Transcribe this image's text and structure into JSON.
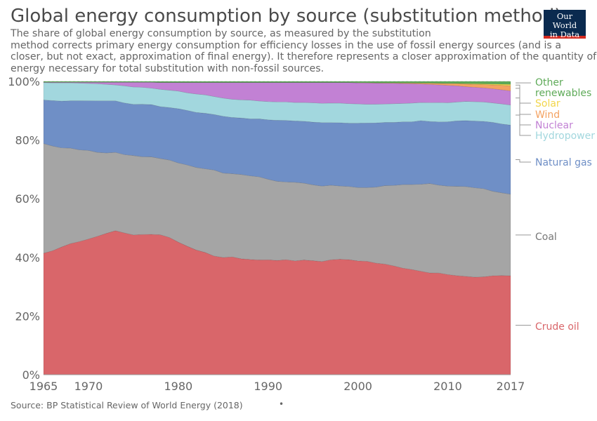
{
  "title": "Global energy consumption by source (substitution method)",
  "subtitle_lines": [
    "The share of global energy consumption by source, as measured by the substitution",
    "method corrects primary energy consumption for efficiency losses in the use of fossil energy sources (and is a",
    "closer, but not exact, approximation of final energy). It therefore represents a closer approximation of the quantity of",
    "energy necessary for total substitution with non-fossil sources."
  ],
  "logo": {
    "line1": "Our World",
    "line2": "in Data"
  },
  "source": "Source: BP Statistical Review of World Energy (2018)",
  "footer_dot": "•",
  "colors": {
    "Crude oil": "#d9666a",
    "Coal": "#a5a5a5",
    "Natural gas": "#6f8fc6",
    "Hydropower": "#a2d7de",
    "Nuclear": "#c281d4",
    "Wind": "#f4a261",
    "Solar": "#f2d64b",
    "Other renewables": "#5eaa58"
  },
  "chart_data": {
    "type": "area",
    "stacked": true,
    "ylim": [
      0,
      100
    ],
    "yticks": [
      "0%",
      "20%",
      "40%",
      "60%",
      "80%",
      "100%"
    ],
    "xticks": [
      "1965",
      "1970",
      "1980",
      "1990",
      "2000",
      "2010",
      "2017"
    ],
    "x": [
      1965,
      1966,
      1967,
      1968,
      1969,
      1970,
      1971,
      1972,
      1973,
      1974,
      1975,
      1976,
      1977,
      1978,
      1979,
      1980,
      1981,
      1982,
      1983,
      1984,
      1985,
      1986,
      1987,
      1988,
      1989,
      1990,
      1991,
      1992,
      1993,
      1994,
      1995,
      1996,
      1997,
      1998,
      1999,
      2000,
      2001,
      2002,
      2003,
      2004,
      2005,
      2006,
      2007,
      2008,
      2009,
      2010,
      2011,
      2012,
      2013,
      2014,
      2015,
      2016,
      2017
    ],
    "series": [
      {
        "name": "Crude oil",
        "values": [
          41.2,
          42,
          43.4,
          44.6,
          45.3,
          46.2,
          47,
          48,
          48.9,
          48,
          47.5,
          47.8,
          47.8,
          47.7,
          46.8,
          45.2,
          43.8,
          42.6,
          41.8,
          40.8,
          40,
          40.2,
          39.6,
          39.4,
          39.2,
          39.2,
          39,
          39.2,
          38.8,
          39.1,
          38.9,
          38.7,
          39.3,
          39.4,
          39.3,
          38.9,
          38.8,
          38.2,
          37.8,
          37.3,
          36.5,
          35.9,
          35.3,
          34.6,
          34.6,
          34.1,
          33.6,
          33.4,
          33.2,
          33.3,
          33.6,
          33.7,
          33.5
        ]
      },
      {
        "name": "Coal",
        "values": [
          37.2,
          35.5,
          33.7,
          32.5,
          31.2,
          30.2,
          28.5,
          27.3,
          26.6,
          26.5,
          27,
          26.5,
          26.4,
          26,
          26.4,
          27,
          27.7,
          28.2,
          28.6,
          29.6,
          28.8,
          28.4,
          28.8,
          28.6,
          28.4,
          27.5,
          27,
          26.5,
          26.8,
          26.2,
          25.9,
          25.8,
          25.5,
          25,
          25,
          25.1,
          25.2,
          26,
          26.8,
          27.6,
          28.6,
          29,
          29.7,
          30.4,
          29.9,
          30.1,
          30.3,
          30.5,
          30.4,
          30,
          28.7,
          28.1,
          27.6
        ]
      },
      {
        "name": "Natural gas",
        "values": [
          14.8,
          15.4,
          15.9,
          16.1,
          16.7,
          16.9,
          17.5,
          17.7,
          17.5,
          17.5,
          17.4,
          17.9,
          17.8,
          17.7,
          17.9,
          18.5,
          18.6,
          18.8,
          19,
          19.1,
          19.4,
          19.2,
          19.3,
          19.5,
          19.8,
          20.3,
          20.8,
          21,
          20.9,
          21.1,
          21.4,
          21.7,
          21.4,
          21.6,
          21.6,
          22,
          22.1,
          22,
          21.6,
          21.6,
          21.5,
          21.4,
          21.7,
          21.1,
          21.5,
          21.9,
          22.2,
          22.4,
          22.7,
          22.9,
          23.4,
          23.4,
          23.4
        ]
      },
      {
        "name": "Hydropower",
        "values": [
          5.9,
          6,
          6.2,
          6.1,
          6,
          5.9,
          5.8,
          5.6,
          5.4,
          5.8,
          5.9,
          5.8,
          5.6,
          5.9,
          5.9,
          6,
          6,
          6.3,
          6.3,
          6.2,
          6.2,
          6.2,
          6.2,
          6.4,
          6.1,
          6.2,
          6.3,
          6.3,
          6.3,
          6.4,
          6.6,
          6.6,
          6.7,
          6.7,
          6.7,
          6.6,
          6.4,
          6.4,
          6.3,
          6.4,
          6.3,
          6.4,
          6.2,
          6.4,
          6.6,
          6.5,
          6.4,
          6.5,
          6.6,
          6.6,
          6.6,
          6.8,
          6.8
        ]
      },
      {
        "name": "Nuclear",
        "values": [
          0.1,
          0.2,
          0.2,
          0.2,
          0.3,
          0.4,
          0.5,
          0.7,
          0.9,
          1.2,
          1.6,
          1.7,
          2,
          2.3,
          2.6,
          2.9,
          3.5,
          3.9,
          4.2,
          4.8,
          5.3,
          5.7,
          5.9,
          6,
          6.3,
          6.5,
          6.6,
          6.6,
          6.8,
          6.8,
          6.9,
          7.1,
          7,
          7,
          7.2,
          7.2,
          7.3,
          7.2,
          7.1,
          7,
          6.8,
          6.6,
          6.3,
          6.2,
          6,
          5.9,
          5.5,
          5,
          4.9,
          4.8,
          4.8,
          4.8,
          4.8
        ]
      },
      {
        "name": "Wind",
        "values": [
          0,
          0,
          0,
          0,
          0,
          0,
          0,
          0,
          0,
          0,
          0,
          0,
          0,
          0,
          0,
          0,
          0,
          0,
          0,
          0,
          0,
          0,
          0,
          0,
          0,
          0,
          0,
          0,
          0,
          0,
          0,
          0,
          0,
          0,
          0,
          0.05,
          0.07,
          0.1,
          0.12,
          0.15,
          0.2,
          0.25,
          0.3,
          0.4,
          0.5,
          0.6,
          0.7,
          0.9,
          1,
          1.1,
          1.3,
          1.5,
          1.7
        ]
      },
      {
        "name": "Solar",
        "values": [
          0,
          0,
          0,
          0,
          0,
          0,
          0,
          0,
          0,
          0,
          0,
          0,
          0,
          0,
          0,
          0,
          0,
          0,
          0,
          0,
          0,
          0,
          0,
          0,
          0,
          0,
          0,
          0,
          0,
          0,
          0,
          0,
          0,
          0,
          0,
          0,
          0,
          0,
          0,
          0,
          0,
          0,
          0,
          0.02,
          0.04,
          0.06,
          0.1,
          0.15,
          0.2,
          0.25,
          0.3,
          0.4,
          0.5
        ]
      },
      {
        "name": "Other renewables",
        "values": [
          0.3,
          0.3,
          0.3,
          0.3,
          0.3,
          0.3,
          0.3,
          0.3,
          0.3,
          0.3,
          0.3,
          0.3,
          0.3,
          0.4,
          0.4,
          0.4,
          0.4,
          0.4,
          0.4,
          0.4,
          0.4,
          0.4,
          0.4,
          0.4,
          0.4,
          0.4,
          0.4,
          0.4,
          0.4,
          0.4,
          0.4,
          0.4,
          0.4,
          0.4,
          0.4,
          0.45,
          0.45,
          0.5,
          0.5,
          0.5,
          0.55,
          0.55,
          0.6,
          0.6,
          0.65,
          0.7,
          0.7,
          0.75,
          0.8,
          0.85,
          0.9,
          0.95,
          1
        ]
      }
    ],
    "legend_placement": "right, inline labels",
    "legend": [
      {
        "label_lines": [
          "Other",
          "renewables"
        ],
        "series": "Other renewables"
      },
      {
        "label_lines": [
          "Solar"
        ],
        "series": "Solar"
      },
      {
        "label_lines": [
          "Wind"
        ],
        "series": "Wind"
      },
      {
        "label_lines": [
          "Nuclear"
        ],
        "series": "Nuclear"
      },
      {
        "label_lines": [
          "Hydropower"
        ],
        "series": "Hydropower"
      },
      {
        "label_lines": [
          "Natural gas"
        ],
        "series": "Natural gas"
      },
      {
        "label_lines": [
          "Coal"
        ],
        "series": "Coal"
      },
      {
        "label_lines": [
          "Crude oil"
        ],
        "series": "Crude oil"
      }
    ],
    "grid": true
  }
}
